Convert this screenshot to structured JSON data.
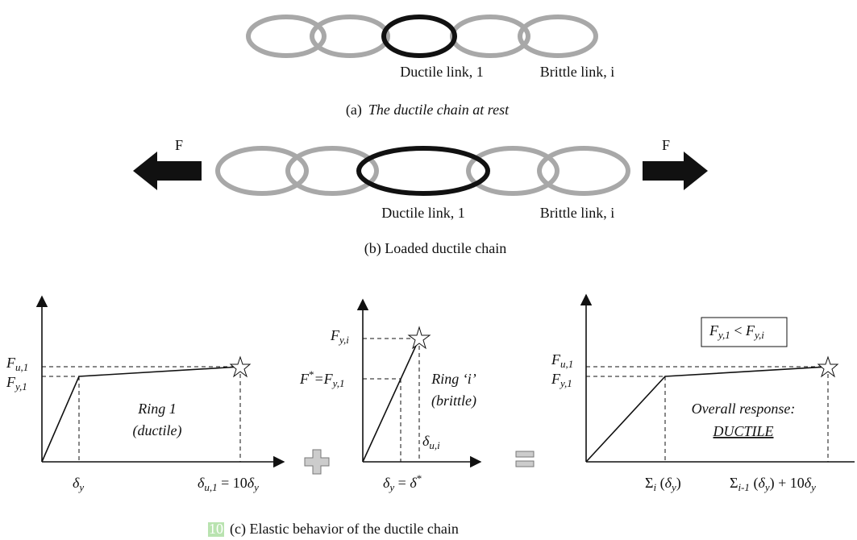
{
  "panel_a": {
    "ductile_label": "Ductile link, 1",
    "brittle_label": "Brittle link, i",
    "caption_tag": "(a)",
    "caption": "The ductile chain at rest"
  },
  "panel_b": {
    "force_left": "F",
    "force_right": "F",
    "ductile_label": "Ductile link, 1",
    "brittle_label": "Brittle link, i",
    "caption": "(b) Loaded ductile chain"
  },
  "panel_c": {
    "graph_1": {
      "fu": [
        "F",
        "u,1"
      ],
      "fy": [
        "F",
        "y,1"
      ],
      "dy": [
        "δ",
        "y"
      ],
      "du": [
        "δ",
        "u,1",
        " = 10",
        "δ",
        "y"
      ],
      "ring": "Ring 1",
      "ring_type": "(ductile)"
    },
    "graph_2": {
      "fyi": [
        "F",
        "y,i"
      ],
      "fstar": [
        "F",
        "*",
        "=F",
        "y,1"
      ],
      "ring": "Ring ‘i’",
      "ring_type": "(brittle)",
      "dui": [
        "δ",
        "u,i"
      ],
      "dy": [
        "δ",
        "y",
        " = ",
        "δ",
        "*"
      ]
    },
    "graph_3": {
      "fu": [
        "F",
        "u,1"
      ],
      "fy": [
        "F",
        "y,1"
      ],
      "condition": [
        "F",
        "y,1",
        " < ",
        "F",
        "y,i"
      ],
      "response": "Overall response:",
      "result": "DUCTILE",
      "sum1": [
        "Σ",
        "i",
        " (",
        "δ",
        "y",
        ")"
      ],
      "sum2": [
        "Σ",
        "i-1",
        " (",
        "δ",
        "y",
        ") + 10",
        "δ",
        "y"
      ]
    },
    "page_number": "10",
    "caption": "(c) Elastic behavior of the ductile chain"
  }
}
